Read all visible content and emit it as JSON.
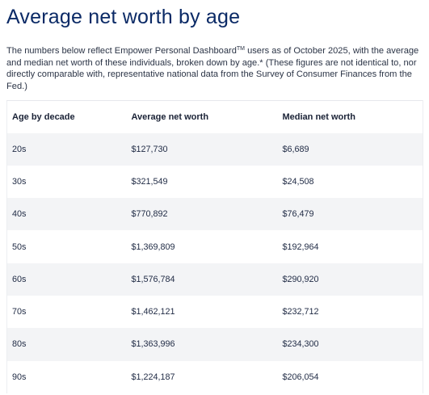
{
  "title": "Average net worth by age",
  "intro": {
    "before_tm": "The numbers below reflect Empower Personal Dashboard",
    "tm": "TM",
    "after_tm": " users as of October 2025, with the average and median net worth of these individuals, broken down by age.* (These figures are not identical to, nor directly comparable with, representative national data from the Survey of Consumer Finances from the Fed.)"
  },
  "table": {
    "headers": [
      "Age by decade",
      "Average net worth",
      "Median net worth"
    ],
    "rows": [
      [
        "20s",
        "$127,730",
        "$6,689"
      ],
      [
        "30s",
        "$321,549",
        "$24,508"
      ],
      [
        "40s",
        "$770,892",
        "$76,479"
      ],
      [
        "50s",
        "$1,369,809",
        "$192,964"
      ],
      [
        "60s",
        "$1,576,784",
        "$290,920"
      ],
      [
        "70s",
        "$1,462,121",
        "$232,712"
      ],
      [
        "80s",
        "$1,363,996",
        "$234,300"
      ],
      [
        "90s",
        "$1,224,187",
        "$206,054"
      ]
    ]
  },
  "colors": {
    "title": "#0b2a66",
    "text": "#2b3446",
    "stripe": "#f3f4f6"
  }
}
